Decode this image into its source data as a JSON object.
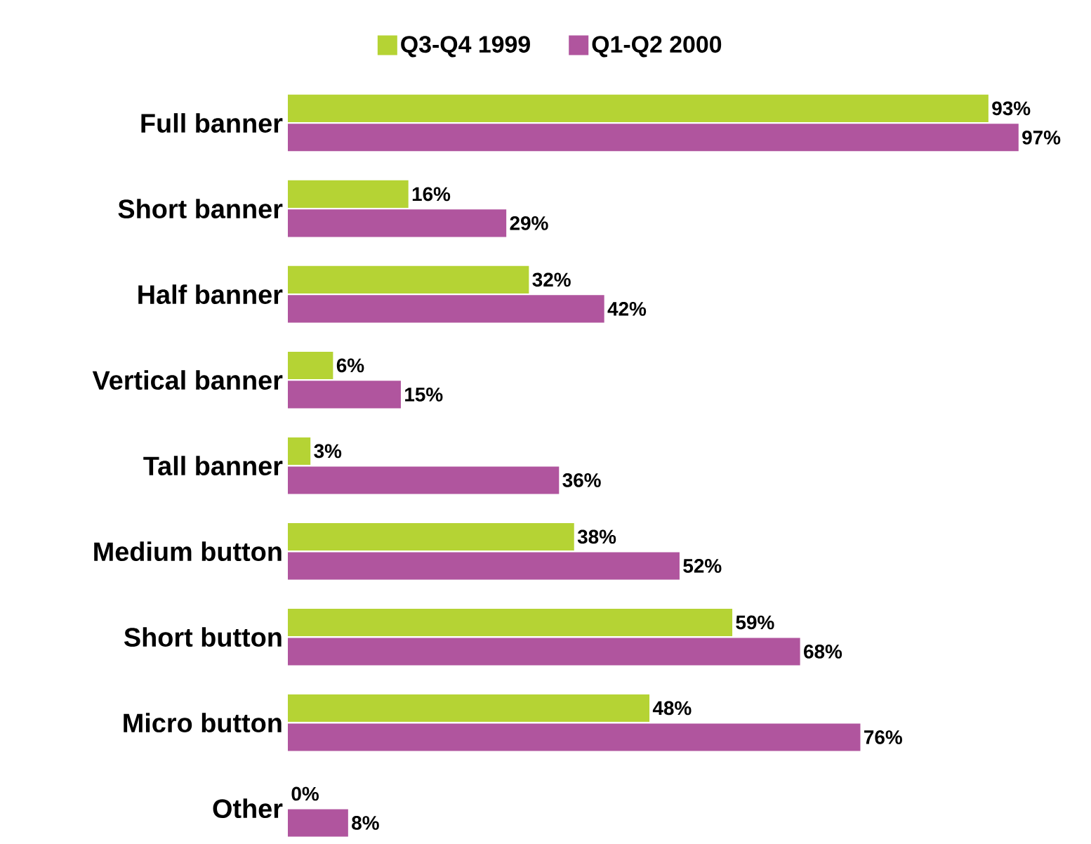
{
  "chart_data": {
    "type": "bar",
    "orientation": "horizontal",
    "categories": [
      "Full banner",
      "Short banner",
      "Half banner",
      "Vertical banner",
      "Tall banner",
      "Medium button",
      "Short button",
      "Micro button",
      "Other"
    ],
    "series": [
      {
        "name": "Q3-Q4 1999",
        "color": "#b5d334",
        "values": [
          93,
          16,
          32,
          6,
          3,
          38,
          59,
          48,
          0
        ],
        "value_labels": [
          "93%",
          "16%",
          "32%",
          "6%",
          "3%",
          "38%",
          "59%",
          "48%",
          "0%"
        ]
      },
      {
        "name": "Q1-Q2 2000",
        "color": "#b0559e",
        "values": [
          97,
          29,
          42,
          15,
          36,
          52,
          68,
          76,
          8
        ],
        "value_labels": [
          "97%",
          "29%",
          "42%",
          "15%",
          "36%",
          "52%",
          "68%",
          "76%",
          "8%"
        ]
      }
    ],
    "tick_labels": "y",
    "legend": "top",
    "grid": false
  }
}
